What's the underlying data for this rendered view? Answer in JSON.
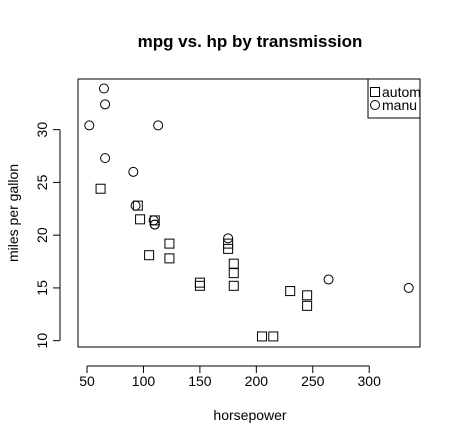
{
  "chart_data": {
    "type": "scatter",
    "title": "mpg vs. hp by transmission",
    "xlabel": "horsepower",
    "ylabel": "miles per gallon",
    "xlim": [
      42,
      345
    ],
    "ylim": [
      9.4,
      34.8
    ],
    "x_ticks": [
      50,
      100,
      150,
      200,
      250,
      300
    ],
    "y_ticks": [
      10,
      15,
      20,
      25,
      30
    ],
    "grid": false,
    "legend_position": "top-right",
    "series": [
      {
        "name": "automatic",
        "legend_text": "autom",
        "marker": "square",
        "points": [
          [
            62,
            24.4
          ],
          [
            95,
            22.8
          ],
          [
            97,
            21.5
          ],
          [
            105,
            18.1
          ],
          [
            110,
            21.4
          ],
          [
            123,
            19.2
          ],
          [
            123,
            17.8
          ],
          [
            150,
            15.5
          ],
          [
            150,
            15.2
          ],
          [
            175,
            19.2
          ],
          [
            175,
            18.7
          ],
          [
            180,
            17.3
          ],
          [
            180,
            16.4
          ],
          [
            180,
            15.2
          ],
          [
            205,
            10.4
          ],
          [
            215,
            10.4
          ],
          [
            230,
            14.7
          ],
          [
            245,
            14.3
          ],
          [
            245,
            13.3
          ]
        ]
      },
      {
        "name": "manual",
        "legend_text": "manu",
        "marker": "circle",
        "points": [
          [
            52,
            30.4
          ],
          [
            65,
            33.9
          ],
          [
            66,
            32.4
          ],
          [
            66,
            27.3
          ],
          [
            91,
            26.0
          ],
          [
            93,
            22.8
          ],
          [
            109,
            21.4
          ],
          [
            110,
            21.0
          ],
          [
            110,
            21.0
          ],
          [
            113,
            30.4
          ],
          [
            175,
            19.7
          ],
          [
            264,
            15.8
          ],
          [
            335,
            15.0
          ]
        ]
      }
    ]
  }
}
